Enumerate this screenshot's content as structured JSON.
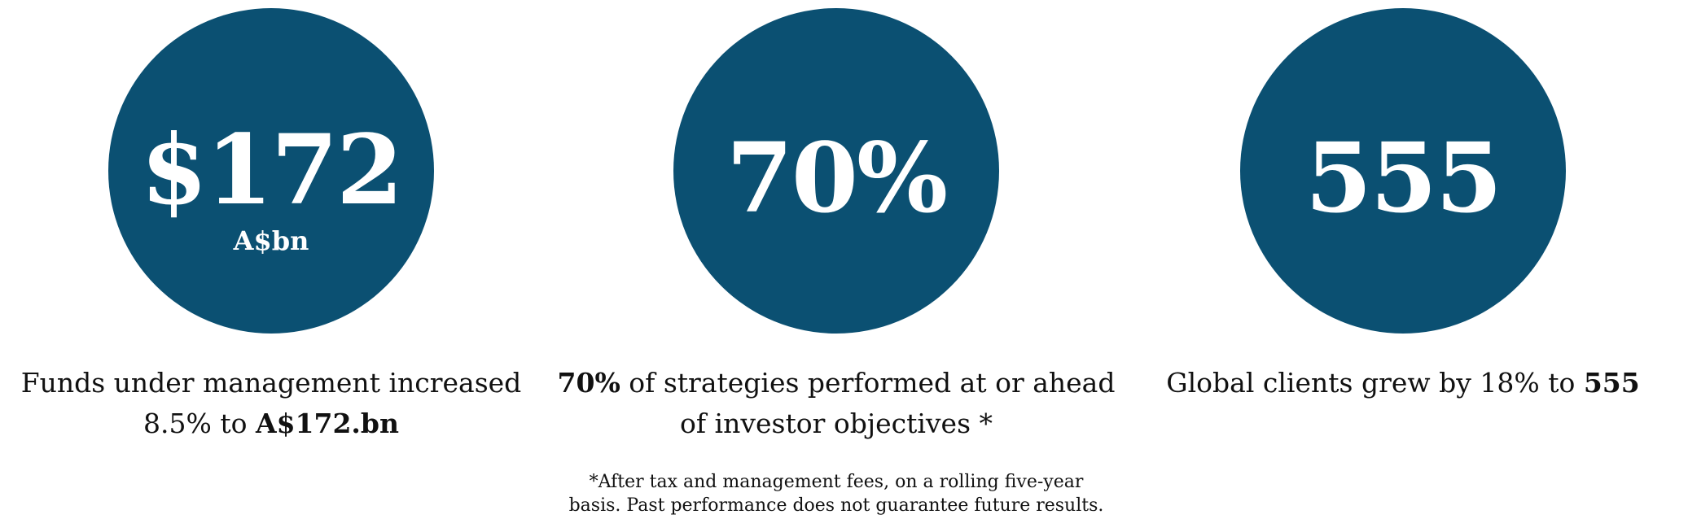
{
  "stats": [
    {
      "value": "$172",
      "unit": "A$bn",
      "caption_line1": "Funds under management increased",
      "caption_line2_prefix": "8.5% to ",
      "caption_line2_bold": "A$172.bn"
    },
    {
      "value": "70%",
      "caption_line1_bold": "70%",
      "caption_line1_rest": " of strategies performed at or ahead",
      "caption_line2": "of investor objectives *",
      "footnote_line1": "*After tax and management fees, on a rolling five-year",
      "footnote_line2": "basis. Past performance does not guarantee future results."
    },
    {
      "value": "555",
      "caption_prefix": "Global clients grew by 18% to ",
      "caption_bold": "555"
    }
  ],
  "colors": {
    "circle": "#0b5072",
    "text": "#111111",
    "background": "#ffffff"
  }
}
